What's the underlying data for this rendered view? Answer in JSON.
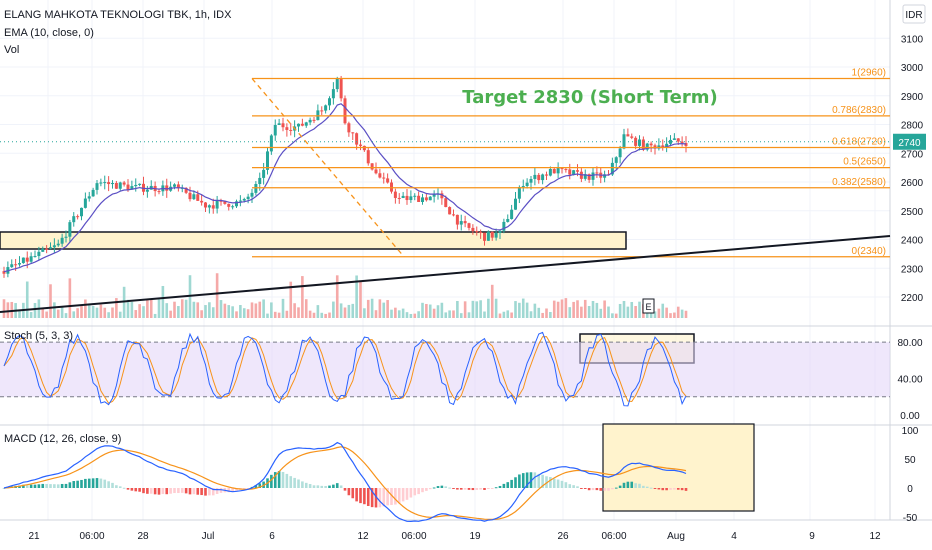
{
  "header": {
    "symbol_line": "ELANG MAHKOTA TEKNOLOGI TBK, 1h, IDX",
    "ema_label": "EMA (10, close, 0)",
    "vol_label": "Vol",
    "currency": "IDR"
  },
  "price_scale": [
    "3100",
    "3000",
    "2900",
    "2800",
    "2700",
    "2600",
    "2500",
    "2400",
    "2300",
    "2200"
  ],
  "price_top_tick": "3",
  "last_price": "2740",
  "fib_levels": [
    {
      "label": "1(2960)",
      "value": 2960
    },
    {
      "label": "0.786(2830)",
      "value": 2830
    },
    {
      "label": "0.618(2720)",
      "value": 2720
    },
    {
      "label": "0.5(2650)",
      "value": 2650
    },
    {
      "label": "0.382(2580)",
      "value": 2580
    },
    {
      "label": "0(2340)",
      "value": 2340
    }
  ],
  "annotation": "Target 2830 (Short Term)",
  "earnings_marker": "E",
  "stoch": {
    "label": "Stoch (5, 3, 3)",
    "ticks": [
      "80.00",
      "40.00",
      "0.00"
    ]
  },
  "macd": {
    "label": "MACD (12, 26, close, 9)",
    "ticks": [
      "100",
      "50",
      "0",
      "-50"
    ]
  },
  "x_ticks": [
    "21",
    "06:00",
    "28",
    "Jul",
    "6",
    "12",
    "06:00",
    "19",
    "26",
    "06:00",
    "Aug",
    "4",
    "9",
    "12"
  ],
  "colors": {
    "up": "#26a69a",
    "down": "#ef5350",
    "fib": "#f7931a",
    "ema": "#5b4fc4",
    "stoch_k": "#2962ff",
    "stoch_d": "#f7931a",
    "stoch_band": "#e1d3f7",
    "highlight": "#fff3cd"
  },
  "chart_data": {
    "type": "candlestick",
    "price_path": [
      {
        "bar": 0,
        "price": 2290
      },
      {
        "bar": 14,
        "price": 2380
      },
      {
        "bar": 24,
        "price": 2600
      },
      {
        "bar": 34,
        "price": 2580
      },
      {
        "bar": 44,
        "price": 2580
      },
      {
        "bar": 52,
        "price": 2520
      },
      {
        "bar": 62,
        "price": 2530
      },
      {
        "bar": 66,
        "price": 2600
      },
      {
        "bar": 70,
        "price": 2800
      },
      {
        "bar": 76,
        "price": 2790
      },
      {
        "bar": 82,
        "price": 2850
      },
      {
        "bar": 86,
        "price": 2960
      },
      {
        "bar": 88,
        "price": 2810
      },
      {
        "bar": 96,
        "price": 2630
      },
      {
        "bar": 102,
        "price": 2540
      },
      {
        "bar": 112,
        "price": 2550
      },
      {
        "bar": 118,
        "price": 2450
      },
      {
        "bar": 124,
        "price": 2410
      },
      {
        "bar": 128,
        "price": 2420
      },
      {
        "bar": 134,
        "price": 2600
      },
      {
        "bar": 142,
        "price": 2640
      },
      {
        "bar": 150,
        "price": 2620
      },
      {
        "bar": 156,
        "price": 2620
      },
      {
        "bar": 160,
        "price": 2760
      },
      {
        "bar": 166,
        "price": 2720
      },
      {
        "bar": 172,
        "price": 2740
      },
      {
        "bar": 176,
        "price": 2740
      }
    ]
  }
}
